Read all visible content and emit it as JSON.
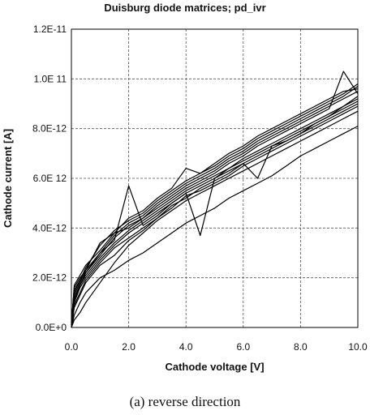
{
  "caption": "(a) reverse direction",
  "chart_data": {
    "type": "line",
    "title": "Duisburg diode matrices; pd_ivr",
    "xlabel": "Cathode voltage [V]",
    "ylabel": "Cathode current [A]",
    "xlim": [
      0,
      10
    ],
    "ylim": [
      0,
      1.2e-11
    ],
    "x_ticks": [
      0,
      2,
      4,
      6,
      8,
      10
    ],
    "x_tick_labels": [
      "0.0",
      "2.0",
      "4.0",
      "6.0",
      "8.0",
      "10.0"
    ],
    "y_ticks": [
      0,
      2e-12,
      4e-12,
      6e-12,
      8e-12,
      1e-11,
      1.2e-11
    ],
    "y_tick_labels": [
      "0.0E+0",
      "2.0E-12",
      "4.0E-12",
      "6.0E 12",
      "8.0E-12",
      "1.0E 11",
      "1.2E-11"
    ],
    "grid": "dashed",
    "line_color": "#000000",
    "x": [
      0,
      0.1,
      0.3,
      0.5,
      1,
      1.5,
      2,
      2.5,
      3,
      3.5,
      4,
      4.5,
      5,
      5.5,
      6,
      6.5,
      7,
      7.5,
      8,
      8.5,
      9,
      9.5,
      10
    ],
    "series": [
      {
        "values": [
          1e-13,
          1.6e-12,
          2e-12,
          2.3e-12,
          3e-12,
          3.7e-12,
          4.2e-12,
          4.5e-12,
          5e-12,
          5.4e-12,
          5.8e-12,
          6.1e-12,
          6.4e-12,
          6.8e-12,
          7.1e-12,
          7.5e-12,
          7.8e-12,
          8.1e-12,
          8.4e-12,
          8.7e-12,
          9e-12,
          9.3e-12,
          9.7e-12
        ]
      },
      {
        "values": [
          2e-13,
          1.5e-12,
          1.9e-12,
          2.2e-12,
          2.9e-12,
          3.6e-12,
          4.1e-12,
          4.4e-12,
          4.9e-12,
          5.3e-12,
          5.7e-12,
          6e-12,
          6.3e-12,
          6.7e-12,
          7e-12,
          7.4e-12,
          7.7e-12,
          8e-12,
          8.3e-12,
          8.6e-12,
          8.9e-12,
          9.2e-12,
          9.5e-12
        ]
      },
      {
        "values": [
          1e-13,
          1.4e-12,
          1.9e-12,
          2.4e-12,
          3.3e-12,
          3.9e-12,
          4.3e-12,
          4.6e-12,
          5.1e-12,
          5.5e-12,
          5.9e-12,
          6.2e-12,
          6.5e-12,
          6.9e-12,
          7.2e-12,
          7.6e-12,
          7.9e-12,
          8.2e-12,
          8.5e-12,
          8.8e-12,
          9.1e-12,
          9.4e-12,
          9.8e-12
        ]
      },
      {
        "values": [
          3e-13,
          1.2e-12,
          1.7e-12,
          2.1e-12,
          2.8e-12,
          3.4e-12,
          3.9e-12,
          4.3e-12,
          4.7e-12,
          5.1e-12,
          5.5e-12,
          5.8e-12,
          6.1e-12,
          6.4e-12,
          6.8e-12,
          7.1e-12,
          7.4e-12,
          7.7e-12,
          8e-12,
          8.3e-12,
          8.6e-12,
          8.9e-12,
          9.2e-12
        ]
      },
      {
        "values": [
          0.0,
          1e-12,
          1.6e-12,
          2e-12,
          2.7e-12,
          3.3e-12,
          3.8e-12,
          4.2e-12,
          4.6e-12,
          5e-12,
          5.4e-12,
          5.7e-12,
          6e-12,
          6.3e-12,
          6.6e-12,
          6.9e-12,
          7.2e-12,
          7.5e-12,
          7.8e-12,
          8.1e-12,
          8.4e-12,
          8.7e-12,
          9e-12
        ]
      },
      {
        "values": [
          2e-13,
          1.3e-12,
          1.8e-12,
          2.3e-12,
          3.4e-12,
          3.8e-12,
          4e-12,
          4.4e-12,
          4.8e-12,
          5.2e-12,
          5.6e-12,
          5.9e-12,
          6.2e-12,
          6.6e-12,
          6.9e-12,
          7.3e-12,
          7.6e-12,
          7.9e-12,
          8.2e-12,
          8.5e-12,
          8.8e-12,
          1.03e-11,
          9.4e-12
        ]
      },
      {
        "values": [
          1e-13,
          9e-13,
          1.4e-12,
          1.9e-12,
          2.6e-12,
          3.2e-12,
          3.6e-12,
          4e-12,
          4.4e-12,
          4.8e-12,
          5.3e-12,
          5.5e-12,
          5.8e-12,
          6.1e-12,
          6.5e-12,
          6.8e-12,
          7.1e-12,
          7.4e-12,
          7.7e-12,
          8e-12,
          8.3e-12,
          8.6e-12,
          8.9e-12
        ]
      },
      {
        "values": [
          0.0,
          5e-13,
          1e-12,
          1.4e-12,
          2e-12,
          2.3e-12,
          2.7e-12,
          3e-12,
          3.4e-12,
          3.8e-12,
          4.2e-12,
          4.5e-12,
          4.8e-12,
          5.2e-12,
          5.5e-12,
          5.8e-12,
          6.1e-12,
          6.5e-12,
          6.9e-12,
          7.2e-12,
          7.5e-12,
          7.8e-12,
          8.1e-12
        ]
      },
      {
        "values": [
          0.0,
          3e-13,
          6e-13,
          1e-12,
          1.8e-12,
          2.6e-12,
          3.3e-12,
          3.8e-12,
          4.3e-12,
          4.7e-12,
          5.1e-12,
          5.4e-12,
          5.7e-12,
          6e-12,
          6.3e-12,
          6.6e-12,
          6.9e-12,
          7.2e-12,
          7.5e-12,
          7.8e-12,
          8.1e-12,
          8.4e-12,
          8.7e-12
        ]
      },
      {
        "values": [
          1e-13,
          1.7e-12,
          2.1e-12,
          2.5e-12,
          3.1e-12,
          3.8e-12,
          4.4e-12,
          4.7e-12,
          5.2e-12,
          5.6e-12,
          6.4e-12,
          6.2e-12,
          6.6e-12,
          7e-12,
          7.3e-12,
          7.7e-12,
          8e-12,
          8.3e-12,
          8.6e-12,
          8.9e-12,
          9.2e-12,
          9.5e-12,
          9.6e-12
        ]
      },
      {
        "values": [
          2e-13,
          1.1e-12,
          1.7e-12,
          2.2e-12,
          3e-12,
          3.5e-12,
          5.7e-12,
          4.1e-12,
          4.5e-12,
          5e-12,
          5.4e-12,
          3.7e-12,
          6e-12,
          6.4e-12,
          6.7e-12,
          7e-12,
          7.3e-12,
          7.6e-12,
          7.9e-12,
          8.2e-12,
          8.5e-12,
          8.8e-12,
          9.1e-12
        ]
      },
      {
        "values": [
          0.0,
          8e-13,
          1.3e-12,
          1.8e-12,
          2.5e-12,
          2.9e-12,
          3.5e-12,
          3.9e-12,
          4.4e-12,
          4.9e-12,
          5.2e-12,
          5.6e-12,
          5.9e-12,
          6.2e-12,
          6.6e-12,
          6e-12,
          7.3e-12,
          7.5e-12,
          7.8e-12,
          8.2e-12,
          8.5e-12,
          8.9e-12,
          9.3e-12
        ]
      }
    ]
  }
}
